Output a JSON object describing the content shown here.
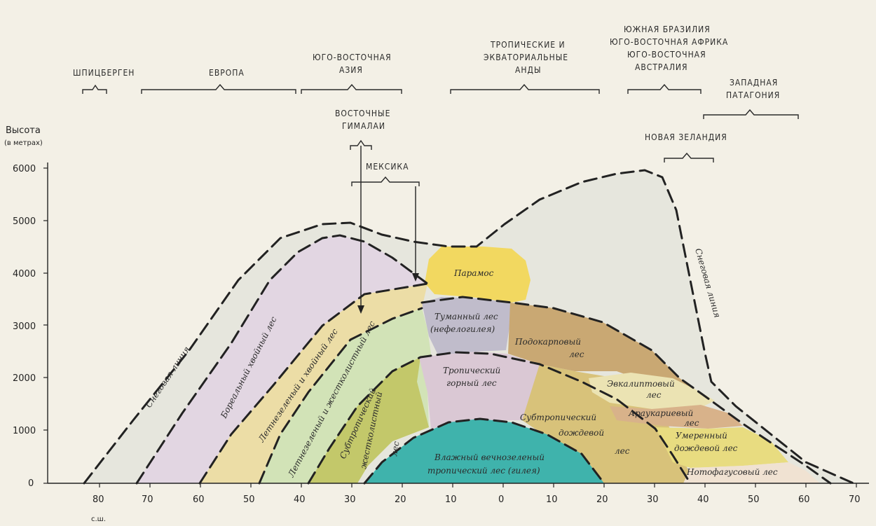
{
  "axis": {
    "y_title": "Высота",
    "y_unit": "(в метрах)",
    "y_ticks": [
      "6000",
      "5000",
      "4000",
      "3000",
      "2000",
      "1000",
      "0"
    ],
    "x_ticks": [
      "80",
      "70",
      "60",
      "50",
      "40",
      "30",
      "20",
      "10",
      "0",
      "10",
      "20",
      "30",
      "40",
      "50",
      "60",
      "70"
    ],
    "x_note": "с.ш."
  },
  "regions": {
    "spitsbergen": "ШПИЦБЕРГЕН",
    "europe": "ЕВРОПА",
    "se_asia": [
      "ЮГО-ВОСТОЧНАЯ",
      "АЗИЯ"
    ],
    "andes": [
      "ТРОПИЧЕСКИЕ И",
      "ЭКВАТОРИАЛЬНЫЕ",
      "АНДЫ"
    ],
    "southern": [
      "ЮЖНАЯ БРАЗИЛИЯ",
      "ЮГО-ВОСТОЧНАЯ АФРИКА",
      "ЮГО-ВОСТОЧНАЯ",
      "АВСТРАЛИЯ"
    ],
    "patagonia": [
      "ЗАПАДНАЯ",
      "ПАТАГОНИЯ"
    ],
    "himalaya": [
      "ВОСТОЧНЫЕ",
      "ГИМАЛАИ"
    ],
    "mexico": "МЕКСИКА",
    "new_zealand": "НОВАЯ ЗЕЛАНДИЯ"
  },
  "zones": {
    "snowline_left": "Снеговая линия",
    "snowline_right": "Снеговая линия",
    "boreal": "Бореальный хвойный лес",
    "summer_conifer": "Летнезеленый и хвойный лес",
    "summer_sclero": "Летнезеленый и жестколистный лес",
    "subtropical": [
      "Субтропический",
      "жестколистный",
      "лес"
    ],
    "paramos": "Парамос",
    "cloud_forest": [
      "Туманный лес",
      "(нефелогилея)"
    ],
    "trop_montane": [
      "Тропический",
      "горный лес"
    ],
    "hylaea": [
      "Влажный вечнозеленый",
      "тропический лес (гилея)"
    ],
    "podocarp": [
      "Подокарповый",
      "лес"
    ],
    "eucalyptus": [
      "Эвкалиптовый",
      "лес"
    ],
    "araucaria": [
      "Араукариевый",
      "лес"
    ],
    "subtrop_rain": [
      "Субтропический",
      "дождевой",
      "лес"
    ],
    "temperate_rain": [
      "Умеренный",
      "дождевой лес"
    ],
    "nothofagus": "Нотофагусовый лес"
  },
  "colors": {
    "background": "#f3f0e6",
    "snow_zone": "#e6e6dd",
    "boreal": "#e2d6e2",
    "summer_conifer": "#ecdda6",
    "summer_sclero": "#d2e3b7",
    "subtropical_sclero": "#c3c86a",
    "paramos": "#f2d860",
    "cloud_forest": "#c0bccb",
    "trop_montane": "#dac8d4",
    "hylaea": "#3fb3ac",
    "podocarp": "#c9a873",
    "subtrop_rain": "#d8c27a",
    "eucalyptus": "#ebe3b3",
    "araucaria": "#d8b28a",
    "temperate_rain": "#e8dc80",
    "nothofagus": "#f0e2d2"
  }
}
